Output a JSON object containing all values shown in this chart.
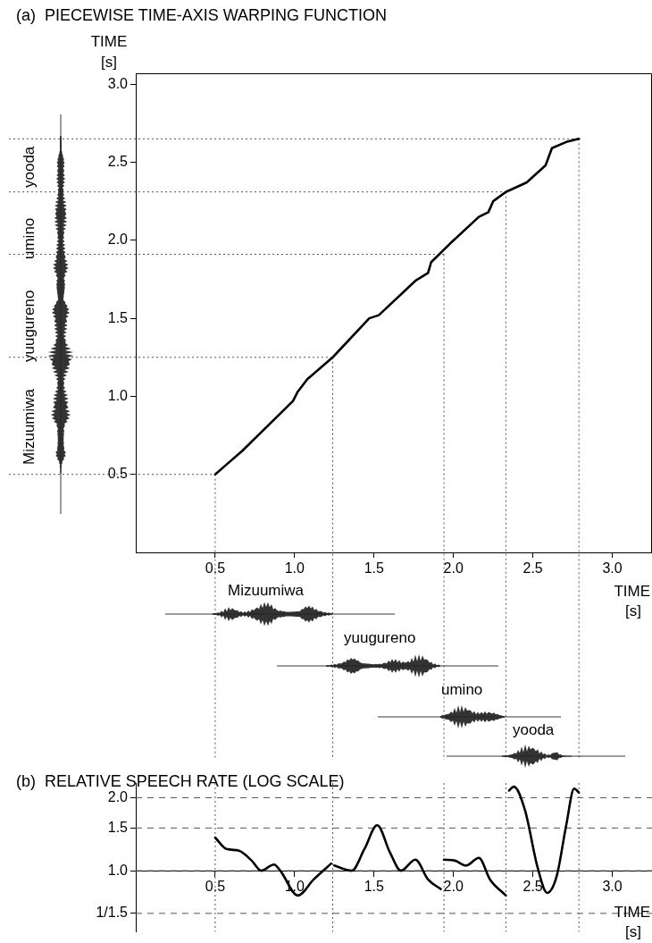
{
  "chart_data": [
    {
      "type": "line",
      "title": "(a)  PIECEWISE TIME-AXIS WARPING FUNCTION",
      "xlabel": "TIME [s]",
      "ylabel": "TIME [s]",
      "xlim": [
        0,
        3.25
      ],
      "xticks": [
        0.5,
        {
          "value": 1,
          "label": "1.0"
        },
        1.5,
        {
          "value": 2,
          "label": "2.0"
        },
        2.5,
        {
          "value": 3,
          "label": "3.0"
        }
      ],
      "ylim": [
        0,
        3.07
      ],
      "yticks": [
        0.5,
        {
          "value": 1,
          "label": "1.0"
        },
        1.5,
        {
          "value": 2,
          "label": "2.0"
        },
        2.5,
        {
          "value": 3,
          "label": "3.0"
        }
      ],
      "marker": "none",
      "series": [
        {
          "color": "#000000",
          "x": [
            0.5,
            0.67,
            0.91,
            0.99,
            1.02,
            1.08,
            1.24,
            1.47,
            1.53,
            1.76,
            1.84,
            1.86,
            1.98,
            2.16,
            2.22,
            2.25,
            2.33,
            2.46,
            2.58,
            2.62,
            2.71,
            2.79
          ],
          "values": [
            0.5,
            0.65,
            0.89,
            0.97,
            1.03,
            1.11,
            1.25,
            1.5,
            1.52,
            1.74,
            1.79,
            1.86,
            1.98,
            2.15,
            2.18,
            2.25,
            2.31,
            2.37,
            2.48,
            2.59,
            2.63,
            2.65
          ]
        }
      ],
      "ref_lines": [
        {
          "axis": "x",
          "value": 0.5,
          "color": "#555555",
          "line_style": "dotted"
        },
        {
          "axis": "x",
          "value": 1.24,
          "color": "#555555",
          "line_style": "dotted"
        },
        {
          "axis": "x",
          "value": 1.94,
          "color": "#555555",
          "line_style": "dotted"
        },
        {
          "axis": "x",
          "value": 2.33,
          "color": "#555555",
          "line_style": "dotted"
        },
        {
          "axis": "x",
          "value": 2.79,
          "color": "#555555",
          "line_style": "dotted"
        },
        {
          "axis": "y",
          "value": 0.5,
          "color": "#555555",
          "line_style": "dotted"
        },
        {
          "axis": "y",
          "value": 1.25,
          "color": "#555555",
          "line_style": "dotted"
        },
        {
          "axis": "y",
          "value": 1.91,
          "color": "#555555",
          "line_style": "dotted"
        },
        {
          "axis": "y",
          "value": 2.31,
          "color": "#555555",
          "line_style": "dotted"
        },
        {
          "axis": "y",
          "value": 2.65,
          "color": "#555555",
          "line_style": "dotted"
        }
      ],
      "annotations": [
        "Mizuumiwa",
        "yuugureno",
        "umino",
        "yooda",
        "Mizuumiwa",
        "yuugureno",
        "umino",
        "yooda"
      ]
    },
    {
      "type": "line",
      "title": "(b)  RELATIVE SPEECH RATE (LOG SCALE)",
      "xlabel": "TIME [s]",
      "log": "y",
      "grid": "y",
      "marker": "none",
      "xlim": [
        0,
        3.25
      ],
      "xticks": [
        0.5,
        {
          "value": 1,
          "label": "1.0"
        },
        1.5,
        {
          "value": 2,
          "label": "2.0"
        },
        2.5,
        {
          "value": 3,
          "label": "3.0"
        }
      ],
      "ylim": [
        0.56,
        2.3
      ],
      "yticks": [
        {
          "value": 0.6667,
          "label": "1/1.5"
        },
        {
          "value": 1,
          "label": "1.0"
        },
        1.5,
        {
          "value": 2,
          "label": "2.0"
        }
      ],
      "series": [
        {
          "color": "#000000",
          "x": [
            0.5,
            0.57,
            0.65,
            0.73,
            0.79,
            0.87,
            0.91,
            1.02,
            1.12,
            1.23
          ],
          "values": [
            1.37,
            1.23,
            1.21,
            1.1,
            1.0,
            1.06,
            1.0,
            0.79,
            0.92,
            1.07
          ]
        },
        {
          "color": "#000000",
          "x": [
            1.25,
            1.36,
            1.44,
            1.52,
            1.6,
            1.67,
            1.76,
            1.84,
            1.92
          ],
          "values": [
            1.05,
            1.0,
            1.23,
            1.54,
            1.19,
            1.0,
            1.11,
            0.92,
            0.84
          ]
        },
        {
          "color": "#000000",
          "x": [
            1.94,
            2.01,
            2.08,
            2.16,
            2.23,
            2.33
          ],
          "values": [
            1.11,
            1.1,
            1.05,
            1.13,
            0.92,
            0.79
          ]
        },
        {
          "color": "#000000",
          "x": [
            2.35,
            2.38,
            2.45,
            2.53,
            2.59,
            2.65,
            2.71,
            2.76,
            2.79
          ],
          "values": [
            2.14,
            2.22,
            1.78,
            1.03,
            0.81,
            0.95,
            1.54,
            2.18,
            2.1
          ]
        }
      ],
      "ref_lines": [
        {
          "axis": "x",
          "value": 0.5,
          "color": "#555555",
          "line_style": "dotted"
        },
        {
          "axis": "x",
          "value": 1.24,
          "color": "#555555",
          "line_style": "dotted"
        },
        {
          "axis": "x",
          "value": 1.94,
          "color": "#555555",
          "line_style": "dotted"
        },
        {
          "axis": "x",
          "value": 2.33,
          "color": "#555555",
          "line_style": "dotted"
        },
        {
          "axis": "x",
          "value": 2.79,
          "color": "#555555",
          "line_style": "dotted"
        }
      ]
    }
  ]
}
